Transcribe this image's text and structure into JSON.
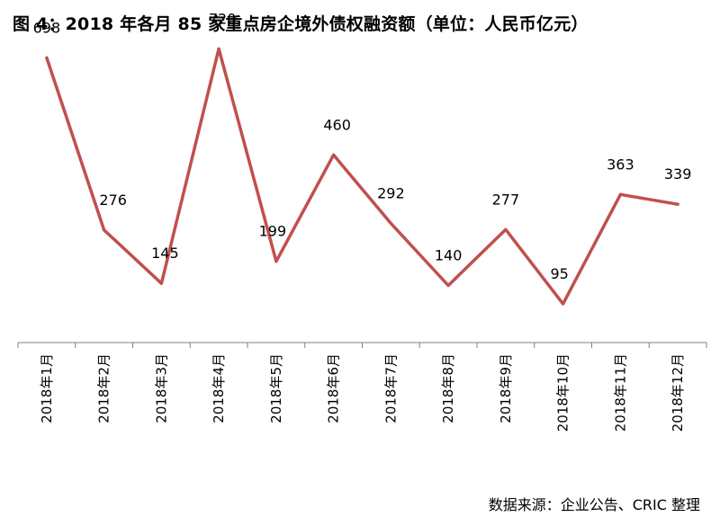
{
  "title": "图 4：2018 年各月 85 家重点房企境外债权融资额（单位：人民币亿元）",
  "source": "数据来源：企业公告、CRIC 整理",
  "chart_data": {
    "type": "line",
    "title": "图 4：2018 年各月 85 家重点房企境外债权融资额（单位：人民币亿元）",
    "xlabel": "",
    "ylabel": "",
    "categories": [
      "2018年1月",
      "2018年2月",
      "2018年3月",
      "2018年4月",
      "2018年5月",
      "2018年6月",
      "2018年7月",
      "2018年8月",
      "2018年9月",
      "2018年10月",
      "2018年11月",
      "2018年12月"
    ],
    "series": [
      {
        "values": [
          698,
          276,
          145,
          720,
          199,
          460,
          292,
          140,
          277,
          95,
          363,
          339
        ]
      }
    ],
    "ylim": [
      0,
      800
    ],
    "grid": false,
    "legend": "none",
    "line_color": "#C0504D",
    "axis_color": "#7F7F7F"
  }
}
